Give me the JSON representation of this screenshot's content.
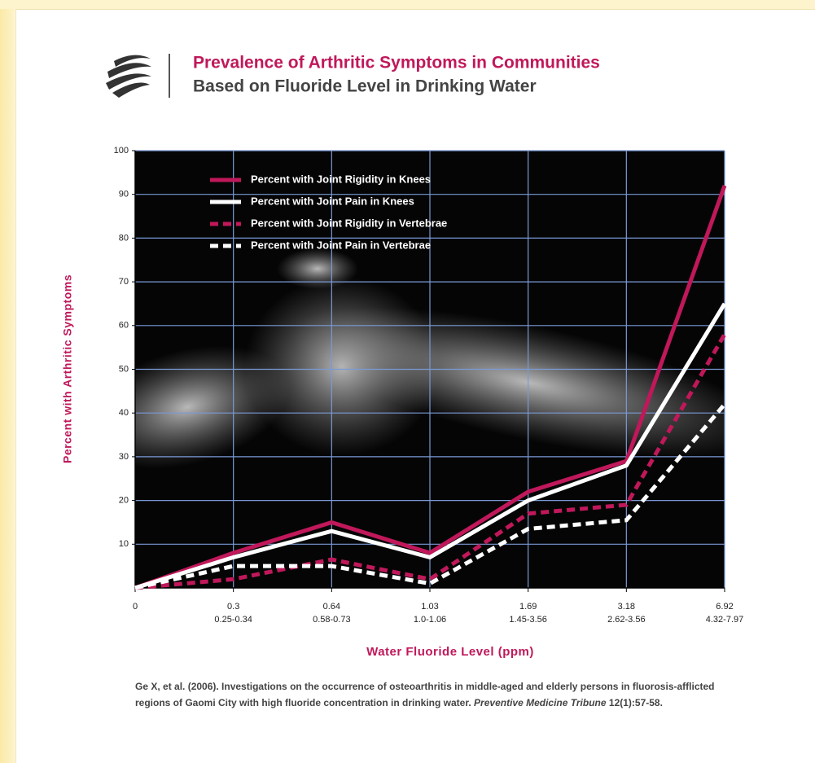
{
  "chart_data": {
    "type": "line",
    "title": "Prevalence of Arthritic Symptoms in Communities",
    "subtitle": "Based on Fluoride Level in Drinking Water",
    "y_label": "Percent with Arthritic Symptoms",
    "x_label": "Water Fluoride Level (ppm)",
    "categories": [
      "0",
      "0.3",
      "0.64",
      "1.03",
      "1.69",
      "3.18",
      "6.92"
    ],
    "category_ranges": [
      null,
      "0.25-0.34",
      "0.58-0.73",
      "1.0-1.06",
      "1.45-3.56",
      "2.62-3.56",
      "4.32-7.97"
    ],
    "ylim": [
      0,
      100
    ],
    "yticks": [
      10,
      20,
      30,
      40,
      50,
      60,
      70,
      80,
      90,
      100
    ],
    "grid": true,
    "legend": "upper left",
    "series": [
      {
        "name": "Percent with Joint Rigidity in Knees",
        "color": "#c0185a",
        "style": "solid",
        "values": [
          0,
          8,
          15,
          8,
          22,
          29,
          92
        ]
      },
      {
        "name": "Percent with Joint Pain in Knees",
        "color": "#ffffff",
        "style": "solid",
        "values": [
          0,
          7,
          13,
          7,
          20,
          28,
          65
        ]
      },
      {
        "name": "Percent with Joint Rigidity in Vertebrae",
        "color": "#c0185a",
        "style": "dashed",
        "values": [
          0,
          2,
          6.5,
          2,
          17,
          19,
          58
        ]
      },
      {
        "name": "Percent with Joint Pain in Vertebrae",
        "color": "#ffffff",
        "style": "dashed",
        "values": [
          0,
          5,
          5,
          1,
          13.5,
          15.5,
          42
        ]
      }
    ]
  },
  "citation": {
    "text": "Ge X, et al. (2006). Investigations on the occurrence of osteoarthritis in middle-aged and elderly persons in fluorosis-afflicted regions of Gaomi City with high fluoride concentration in drinking water.",
    "journal": "Preventive Medicine Tribune",
    "reference": "12(1):57-58."
  }
}
